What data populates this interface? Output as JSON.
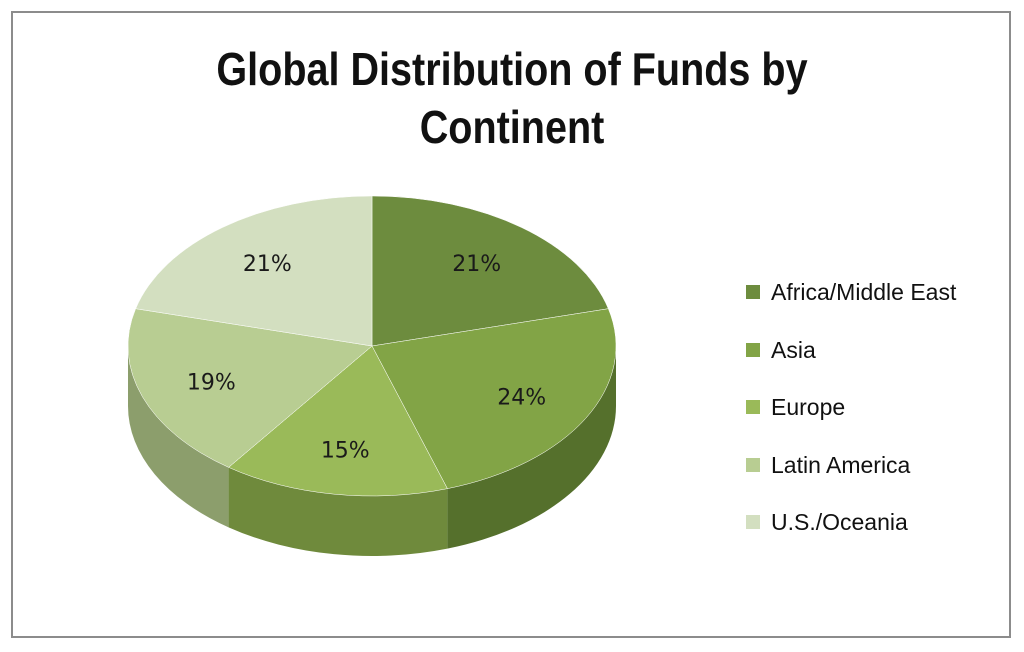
{
  "chart_data": {
    "type": "pie",
    "title_lines": [
      "Global Distribution of Funds  by",
      "Continent"
    ],
    "categories": [
      "Africa/Middle East",
      "Asia",
      "Europe",
      "Latin America",
      "U.S./Oceania"
    ],
    "values": [
      21,
      24,
      15,
      19,
      21
    ],
    "labels": [
      "21%",
      "24%",
      "15%",
      "19%",
      "21%"
    ],
    "colors": [
      "#6d8c3e",
      "#82a446",
      "#9aba59",
      "#b8cd92",
      "#d3dfc0"
    ],
    "side_colors": [
      "#4a6128",
      "#55702c",
      "#6f8a3c",
      "#8c9e6c",
      "#a6b196"
    ],
    "three_d": true,
    "legend_position": "right"
  }
}
